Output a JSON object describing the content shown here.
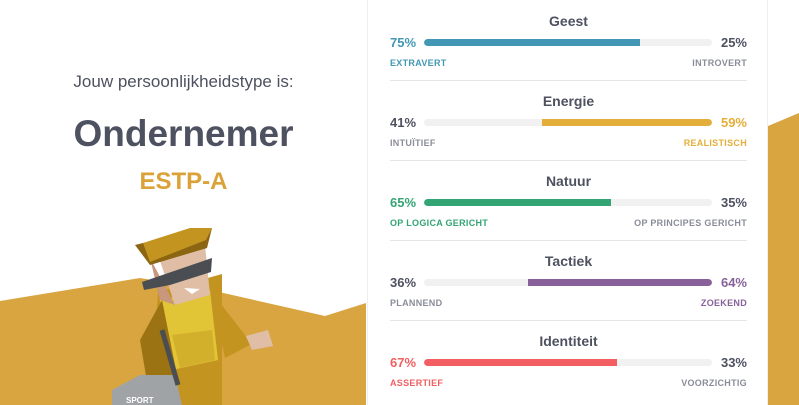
{
  "header": {
    "intro": "Jouw persoonlijkheidstype is:",
    "type_name": "Ondernemer",
    "type_code": "ESTP-A"
  },
  "colors": {
    "accent": "#dba23a"
  },
  "traits": [
    {
      "title": "Geest",
      "left_pct": "75%",
      "right_pct": "25%",
      "left_label": "EXTRAVERT",
      "right_label": "INTROVERT",
      "value": 75,
      "dominant": "left",
      "color": "#4298b4"
    },
    {
      "title": "Energie",
      "left_pct": "41%",
      "right_pct": "59%",
      "left_label": "INTUÏTIEF",
      "right_label": "REALISTISCH",
      "value": 59,
      "dominant": "right",
      "color": "#e4ae3a"
    },
    {
      "title": "Natuur",
      "left_pct": "65%",
      "right_pct": "35%",
      "left_label": "OP LOGICA GERICHT",
      "right_label": "OP PRINCIPES GERICHT",
      "value": 65,
      "dominant": "left",
      "color": "#33a474"
    },
    {
      "title": "Tactiek",
      "left_pct": "36%",
      "right_pct": "64%",
      "left_label": "PLANNEND",
      "right_label": "ZOEKEND",
      "value": 64,
      "dominant": "right",
      "color": "#88619a"
    },
    {
      "title": "Identiteit",
      "left_pct": "67%",
      "right_pct": "33%",
      "left_label": "ASSERTIEF",
      "right_label": "VOORZICHTIG",
      "value": 67,
      "dominant": "left",
      "color": "#f25e62"
    }
  ],
  "illustration": {
    "bag_text": "SPORT"
  }
}
